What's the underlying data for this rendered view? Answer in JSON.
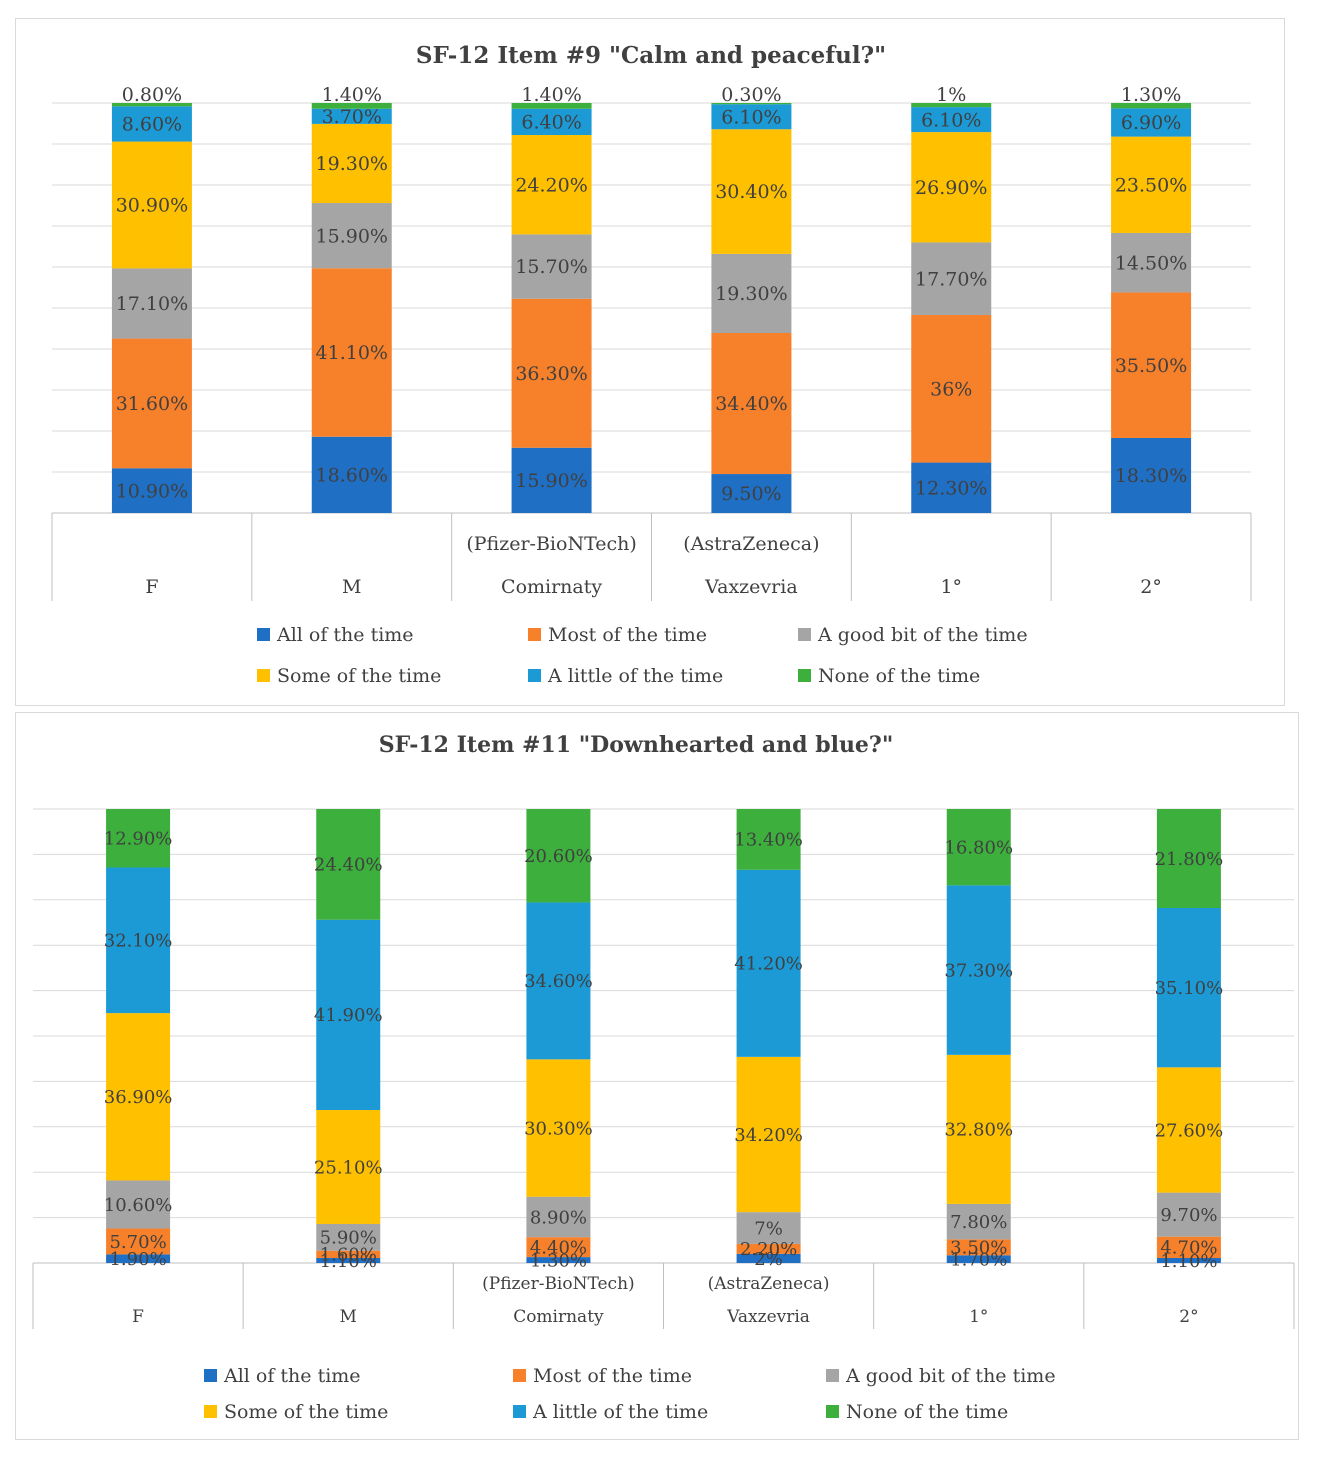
{
  "charts": [
    {
      "title": "SF-12 Item #9 \"Calm and peaceful?\"",
      "groups": [
        {
          "sub": "",
          "label": "F"
        },
        {
          "sub": "",
          "label": "M"
        },
        {
          "sub": "(Pfizer-BioNTech)",
          "label": "Comirnaty"
        },
        {
          "sub": "(AstraZeneca)",
          "label": "Vaxzevria"
        },
        {
          "sub": "",
          "label": "1°"
        },
        {
          "sub": "",
          "label": "2°"
        }
      ],
      "series": [
        {
          "name": "All of the time",
          "color": "#1F6FC5",
          "labels": [
            "10.90%",
            "18.60%",
            "15.90%",
            "9.50%",
            "12.30%",
            "18.30%"
          ]
        },
        {
          "name": "Most of the time",
          "color": "#F7802A",
          "labels": [
            "31.60%",
            "41.10%",
            "36.30%",
            "34.40%",
            "36%",
            "35.50%"
          ]
        },
        {
          "name": "A good bit of the time",
          "color": "#A5A5A5",
          "labels": [
            "17.10%",
            "15.90%",
            "15.70%",
            "19.30%",
            "17.70%",
            "14.50%"
          ]
        },
        {
          "name": "Some of the time",
          "color": "#FFC000",
          "labels": [
            "30.90%",
            "19.30%",
            "24.20%",
            "30.40%",
            "26.90%",
            "23.50%"
          ]
        },
        {
          "name": "A little of the time",
          "color": "#1C9AD6",
          "labels": [
            "8.60%",
            "3.70%",
            "6.40%",
            "6.10%",
            "6.10%",
            "6.90%"
          ]
        },
        {
          "name": "None of the time",
          "color": "#3CAF3C",
          "labels": [
            "0.80%",
            "1.40%",
            "1.40%",
            "0.30%",
            "1%",
            "1.30%"
          ]
        }
      ]
    },
    {
      "title": "SF-12 Item  #11 \"Downhearted and blue?\"",
      "groups": [
        {
          "sub": "",
          "label": "F"
        },
        {
          "sub": "",
          "label": "M"
        },
        {
          "sub": "(Pfizer-BioNTech)",
          "label": "Comirnaty"
        },
        {
          "sub": "(AstraZeneca)",
          "label": "Vaxzevria"
        },
        {
          "sub": "",
          "label": "1°"
        },
        {
          "sub": "",
          "label": "2°"
        }
      ],
      "series": [
        {
          "name": "All of the time",
          "color": "#1F6FC5",
          "labels": [
            "1.90%",
            "1.10%",
            "1.30%",
            "2%",
            "1.70%",
            "1.10%"
          ]
        },
        {
          "name": "Most of the time",
          "color": "#F7802A",
          "labels": [
            "5.70%",
            "1.60%",
            "4.40%",
            "2.20%",
            "3.50%",
            "4.70%"
          ]
        },
        {
          "name": "A good bit of the time",
          "color": "#A5A5A5",
          "labels": [
            "10.60%",
            "5.90%",
            "8.90%",
            "7%",
            "7.80%",
            "9.70%"
          ]
        },
        {
          "name": "Some of the time",
          "color": "#FFC000",
          "labels": [
            "36.90%",
            "25.10%",
            "30.30%",
            "34.20%",
            "32.80%",
            "27.60%"
          ]
        },
        {
          "name": "A little of the time",
          "color": "#1C9AD6",
          "labels": [
            "32.10%",
            "41.90%",
            "34.60%",
            "41.20%",
            "37.30%",
            "35.10%"
          ]
        },
        {
          "name": "None of the time",
          "color": "#3CAF3C",
          "labels": [
            "12.90%",
            "24.40%",
            "20.60%",
            "13.40%",
            "16.80%",
            "21.80%"
          ]
        }
      ]
    }
  ],
  "chart_data": [
    {
      "type": "bar",
      "stacked": true,
      "normalized": true,
      "title": "SF-12 Item #9 \"Calm and peaceful?\"",
      "categories": [
        "F",
        "M",
        "(Pfizer-BioNTech) Comirnaty",
        "(AstraZeneca) Vaxzevria",
        "1°",
        "2°"
      ],
      "series": [
        {
          "name": "All of the time",
          "values": [
            10.9,
            18.6,
            15.9,
            9.5,
            12.3,
            18.3
          ]
        },
        {
          "name": "Most of the time",
          "values": [
            31.6,
            41.1,
            36.3,
            34.4,
            36,
            35.5
          ]
        },
        {
          "name": "A good bit of the time",
          "values": [
            17.1,
            15.9,
            15.7,
            19.3,
            17.7,
            14.5
          ]
        },
        {
          "name": "Some of the time",
          "values": [
            30.9,
            19.3,
            24.2,
            30.4,
            26.9,
            23.5
          ]
        },
        {
          "name": "A little of the time",
          "values": [
            8.6,
            3.7,
            6.4,
            6.1,
            6.1,
            6.9
          ]
        },
        {
          "name": "None of the time",
          "values": [
            0.8,
            1.4,
            1.4,
            0.3,
            1,
            1.3
          ]
        }
      ],
      "ylim": [
        0,
        100
      ],
      "legend": "bottom"
    },
    {
      "type": "bar",
      "stacked": true,
      "normalized": true,
      "title": "SF-12 Item  #11 \"Downhearted and blue?\"",
      "categories": [
        "F",
        "M",
        "(Pfizer-BioNTech) Comirnaty",
        "(AstraZeneca) Vaxzevria",
        "1°",
        "2°"
      ],
      "series": [
        {
          "name": "All of the time",
          "values": [
            1.9,
            1.1,
            1.3,
            2,
            1.7,
            1.1
          ]
        },
        {
          "name": "Most of the time",
          "values": [
            5.7,
            1.6,
            4.4,
            2.2,
            3.5,
            4.7
          ]
        },
        {
          "name": "A good bit of the time",
          "values": [
            10.6,
            5.9,
            8.9,
            7,
            7.8,
            9.7
          ]
        },
        {
          "name": "Some of the time",
          "values": [
            36.9,
            25.1,
            30.3,
            34.2,
            32.8,
            27.6
          ]
        },
        {
          "name": "A little of the time",
          "values": [
            32.1,
            41.9,
            34.6,
            41.2,
            37.3,
            35.1
          ]
        },
        {
          "name": "None of the time",
          "values": [
            12.9,
            24.4,
            20.6,
            13.4,
            16.8,
            21.8
          ]
        }
      ],
      "ylim": [
        0,
        100
      ],
      "legend": "bottom"
    }
  ]
}
